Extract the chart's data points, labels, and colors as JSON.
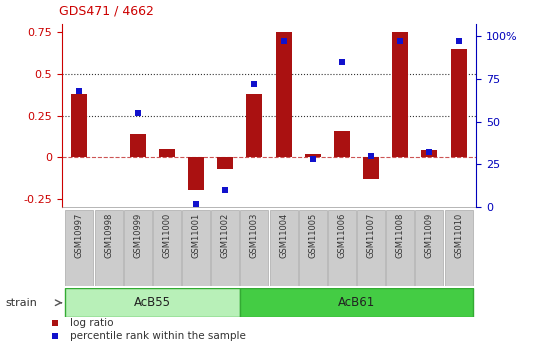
{
  "title": "GDS471 / 4662",
  "samples": [
    "GSM10997",
    "GSM10998",
    "GSM10999",
    "GSM11000",
    "GSM11001",
    "GSM11002",
    "GSM11003",
    "GSM11004",
    "GSM11005",
    "GSM11006",
    "GSM11007",
    "GSM11008",
    "GSM11009",
    "GSM11010"
  ],
  "log_ratio": [
    0.38,
    0.0,
    0.14,
    0.05,
    -0.2,
    -0.07,
    0.38,
    0.75,
    0.02,
    0.16,
    -0.13,
    0.75,
    0.04,
    0.65
  ],
  "percentile": [
    68,
    0,
    55,
    0,
    2,
    10,
    72,
    97,
    28,
    85,
    30,
    97,
    32,
    97
  ],
  "percentile_shown": [
    true,
    false,
    true,
    false,
    true,
    true,
    true,
    true,
    true,
    true,
    true,
    true,
    true,
    true
  ],
  "groups": [
    {
      "label": "AcB55",
      "start": 0,
      "end": 5,
      "color": "#b8f0b8"
    },
    {
      "label": "AcB61",
      "start": 6,
      "end": 13,
      "color": "#44cc44"
    }
  ],
  "bar_color": "#aa1111",
  "dot_color": "#1111cc",
  "ylim_left": [
    -0.3,
    0.8
  ],
  "ylim_right": [
    0,
    107
  ],
  "yticks_left": [
    -0.25,
    0.0,
    0.25,
    0.5,
    0.75
  ],
  "yticks_right": [
    0,
    25,
    50,
    75,
    100
  ],
  "hlines_y": [
    0.0,
    0.25,
    0.5
  ],
  "hline_styles": [
    "--",
    ":",
    ":"
  ],
  "hline_colors": [
    "#cc5555",
    "#333333",
    "#333333"
  ],
  "left_axis_color": "#cc0000",
  "right_axis_color": "#0000bb",
  "strain_label": "strain",
  "legend_items": [
    {
      "label": "log ratio",
      "color": "#aa1111"
    },
    {
      "label": "percentile rank within the sample",
      "color": "#1111cc"
    }
  ]
}
